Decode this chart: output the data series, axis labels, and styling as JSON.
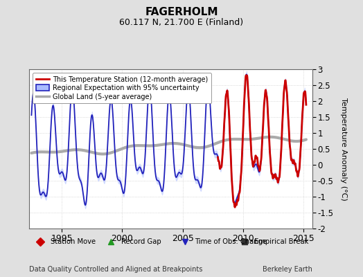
{
  "title": "FAGERHOLM",
  "subtitle": "60.117 N, 21.700 E (Finland)",
  "ylabel": "Temperature Anomaly (°C)",
  "xlabel_left": "Data Quality Controlled and Aligned at Breakpoints",
  "xlabel_right": "Berkeley Earth",
  "ylim": [
    -2,
    3
  ],
  "yticks": [
    -2,
    -1.5,
    -1,
    -0.5,
    0,
    0.5,
    1,
    1.5,
    2,
    2.5,
    3
  ],
  "xlim": [
    1992.3,
    2015.7
  ],
  "xticks": [
    1995,
    2000,
    2005,
    2010,
    2015
  ],
  "bg_color": "#e0e0e0",
  "plot_bg_color": "#ffffff",
  "red_color": "#cc0000",
  "blue_color": "#2222bb",
  "band_color": "#aabbff",
  "gray_color": "#aaaaaa",
  "bottom_legend": [
    {
      "label": "Station Move",
      "color": "#cc0000",
      "marker": "D"
    },
    {
      "label": "Record Gap",
      "color": "#229922",
      "marker": "^"
    },
    {
      "label": "Time of Obs. Change",
      "color": "#2222bb",
      "marker": "v"
    },
    {
      "label": "Empirical Break",
      "color": "#333333",
      "marker": "s"
    }
  ]
}
